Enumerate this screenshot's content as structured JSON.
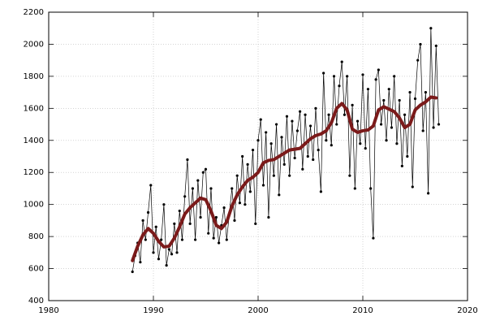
{
  "chart_data": {
    "type": "line",
    "xlim": [
      1980,
      2020
    ],
    "xticks": [
      1980,
      1990,
      2000,
      2010,
      2020
    ],
    "ylim": [
      400,
      2200
    ],
    "yticks": [
      400,
      600,
      800,
      1000,
      1200,
      1400,
      1600,
      1800,
      2000,
      2200
    ],
    "grid": true,
    "series": [
      {
        "color": "#000000",
        "markers": true,
        "x": [
          1988,
          1988.25,
          1988.5,
          1988.75,
          1989,
          1989.25,
          1989.5,
          1989.75,
          1990,
          1990.25,
          1990.5,
          1990.75,
          1991,
          1991.25,
          1991.5,
          1991.75,
          1992,
          1992.25,
          1992.5,
          1992.75,
          1993,
          1993.25,
          1993.5,
          1993.75,
          1994,
          1994.25,
          1994.5,
          1994.75,
          1995,
          1995.25,
          1995.5,
          1995.75,
          1996,
          1996.25,
          1996.5,
          1996.75,
          1997,
          1997.25,
          1997.5,
          1997.75,
          1998,
          1998.25,
          1998.5,
          1998.75,
          1999,
          1999.25,
          1999.5,
          1999.75,
          2000,
          2000.25,
          2000.5,
          2000.75,
          2001,
          2001.25,
          2001.5,
          2001.75,
          2002,
          2002.25,
          2002.5,
          2002.75,
          2003,
          2003.25,
          2003.5,
          2003.75,
          2004,
          2004.25,
          2004.5,
          2004.75,
          2005,
          2005.25,
          2005.5,
          2005.75,
          2006,
          2006.25,
          2006.5,
          2006.75,
          2007,
          2007.25,
          2007.5,
          2007.75,
          2008,
          2008.25,
          2008.5,
          2008.75,
          2009,
          2009.25,
          2009.5,
          2009.75,
          2010,
          2010.25,
          2010.5,
          2010.75,
          2011,
          2011.25,
          2011.5,
          2011.75,
          2012,
          2012.25,
          2012.5,
          2012.75,
          2013,
          2013.25,
          2013.5,
          2013.75,
          2014,
          2014.25,
          2014.5,
          2014.75,
          2015,
          2015.25,
          2015.5,
          2015.75,
          2016,
          2016.25,
          2016.5,
          2016.75,
          2017,
          2017.25
        ],
        "values": [
          580,
          680,
          760,
          640,
          900,
          780,
          950,
          1120,
          700,
          860,
          660,
          780,
          1000,
          620,
          720,
          690,
          880,
          700,
          960,
          780,
          1050,
          1280,
          880,
          1100,
          780,
          1150,
          920,
          1200,
          1220,
          820,
          1100,
          790,
          920,
          760,
          870,
          980,
          780,
          940,
          1100,
          900,
          1180,
          1010,
          1300,
          1000,
          1250,
          1080,
          1340,
          880,
          1400,
          1530,
          1120,
          1450,
          920,
          1380,
          1180,
          1500,
          1060,
          1420,
          1250,
          1550,
          1180,
          1520,
          1290,
          1460,
          1580,
          1220,
          1560,
          1300,
          1490,
          1280,
          1600,
          1340,
          1080,
          1820,
          1400,
          1560,
          1370,
          1800,
          1500,
          1740,
          1890,
          1560,
          1800,
          1180,
          1620,
          1100,
          1520,
          1380,
          1810,
          1350,
          1720,
          1100,
          790,
          1780,
          1840,
          1500,
          1650,
          1400,
          1720,
          1480,
          1800,
          1380,
          1650,
          1240,
          1560,
          1300,
          1700,
          1110,
          1660,
          1900,
          2000,
          1460,
          1700,
          1070,
          2100,
          1480,
          1990,
          1500
        ]
      },
      {
        "color": "#7b1a1a",
        "markers": false,
        "x": [
          1988,
          1988.5,
          1989,
          1989.5,
          1990,
          1990.5,
          1991,
          1991.5,
          1992,
          1992.5,
          1993,
          1993.5,
          1994,
          1994.5,
          1995,
          1995.5,
          1996,
          1996.5,
          1997,
          1997.5,
          1998,
          1998.5,
          1999,
          1999.5,
          2000,
          2000.5,
          2001,
          2001.5,
          2002,
          2002.5,
          2003,
          2003.5,
          2004,
          2004.5,
          2005,
          2005.5,
          2006,
          2006.5,
          2007,
          2007.5,
          2008,
          2008.5,
          2009,
          2009.5,
          2010,
          2010.5,
          2011,
          2011.5,
          2012,
          2012.5,
          2013,
          2013.5,
          2014,
          2014.5,
          2015,
          2015.5,
          2016,
          2016.5,
          2017
        ],
        "values": [
          650,
          740,
          810,
          850,
          820,
          770,
          735,
          740,
          790,
          860,
          940,
          980,
          1010,
          1040,
          1030,
          960,
          870,
          850,
          890,
          990,
          1060,
          1110,
          1150,
          1170,
          1200,
          1260,
          1275,
          1280,
          1300,
          1320,
          1340,
          1345,
          1350,
          1380,
          1410,
          1430,
          1440,
          1460,
          1510,
          1600,
          1630,
          1590,
          1470,
          1450,
          1460,
          1465,
          1490,
          1590,
          1610,
          1595,
          1580,
          1540,
          1480,
          1500,
          1590,
          1620,
          1640,
          1670,
          1665
        ]
      }
    ]
  }
}
